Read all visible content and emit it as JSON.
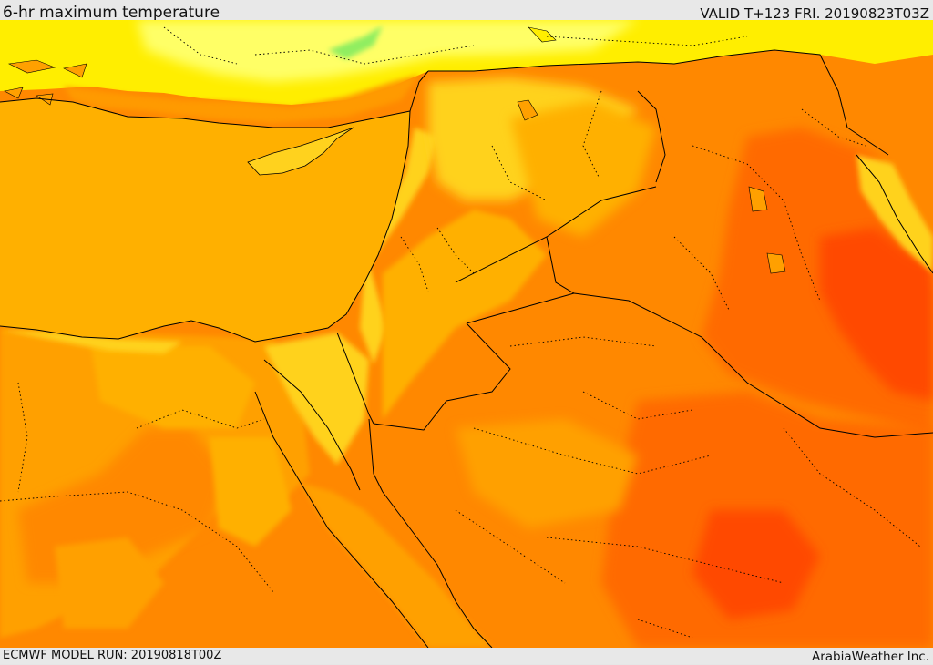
{
  "header": {
    "title": "6-hr maximum temperature",
    "valid": "VALID T+123 FRI. 20190823T03Z"
  },
  "footer": {
    "model_run": "ECMWF MODEL RUN: 20190818T00Z",
    "credit": "ArabiaWeather Inc."
  },
  "palette": {
    "pale_yellow": "#ffff66",
    "yellow": "#ffee00",
    "gold": "#ffd21e",
    "amber": "#ffb000",
    "light_orange": "#ffa000",
    "orange": "#ff8800",
    "dark_orange": "#ff6a00",
    "red_orange": "#ff4a00",
    "red": "#ff3300",
    "green": "#90ee60",
    "border_color": "#000000"
  }
}
